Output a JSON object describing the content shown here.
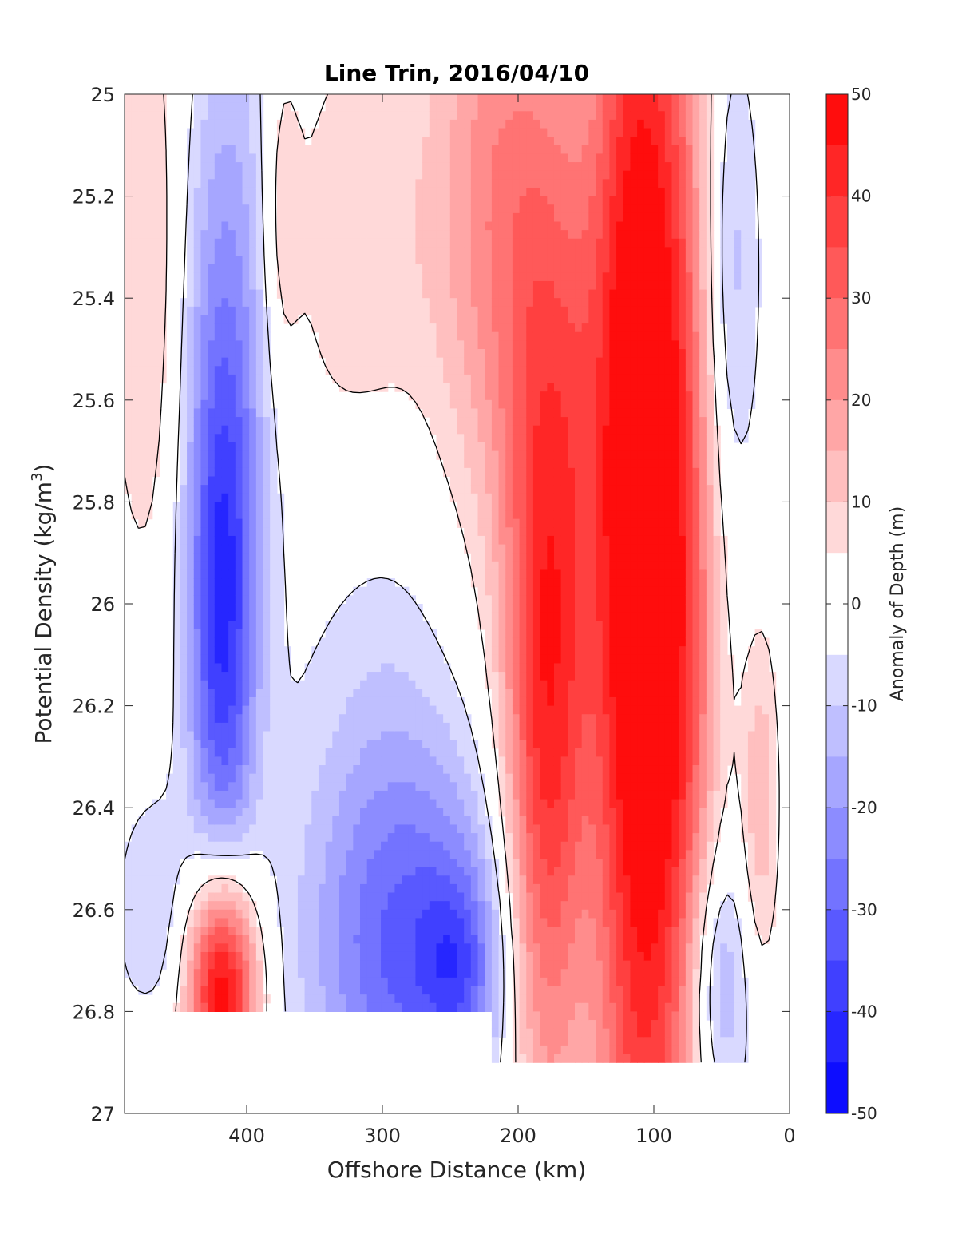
{
  "chart_data": {
    "type": "heatmap",
    "title": "Line Trin, 2016/04/10",
    "xlabel": "Offshore Distance (km)",
    "ylabel_main": "Potential Density (kg/m",
    "ylabel_sup": "3",
    "ylabel_end": ")",
    "colorbar_label": "Anomaly of Depth (m)",
    "x_reversed": true,
    "y_reversed": true,
    "xlim": [
      490,
      0
    ],
    "ylim": [
      25,
      27
    ],
    "xticks": [
      400,
      300,
      200,
      100,
      0
    ],
    "xtick_labels": [
      "400",
      "300",
      "200",
      "100",
      "0"
    ],
    "yticks": [
      25,
      25.2,
      25.4,
      25.6,
      25.8,
      26,
      26.2,
      26.4,
      26.6,
      26.8,
      27
    ],
    "ytick_labels": [
      "25",
      "25.2",
      "25.4",
      "25.6",
      "25.8",
      "26",
      "26.2",
      "26.4",
      "26.6",
      "26.8",
      "27"
    ],
    "colorbar": {
      "min": -50,
      "max": 50,
      "step": 5,
      "ticks": [
        50,
        40,
        30,
        20,
        10,
        0,
        -10,
        -20,
        -30,
        -40,
        -50
      ],
      "tick_labels": [
        "50",
        "40",
        "30",
        "20",
        "10",
        "0",
        "-10",
        "-20",
        "-30",
        "-40",
        "-50"
      ],
      "colormap": "blue-white-red",
      "low_color": "#0000ff",
      "mid_color": "#ffffff",
      "high_color": "#ff0000"
    },
    "contour_levels": [
      0
    ],
    "data_extent": {
      "y_max_by_x": [
        {
          "x_range": [
            490,
            220
          ],
          "y_max": 26.8
        },
        {
          "x_range": [
            220,
            0
          ],
          "y_max": 26.9
        }
      ]
    },
    "features": [
      {
        "x": 470,
        "y": 25.35,
        "amp": 12,
        "sx": 22,
        "sy": 0.45
      },
      {
        "x": 470,
        "y": 26.95,
        "amp": 6,
        "sx": 15,
        "sy": 0.1
      },
      {
        "x": 418,
        "y": 26.05,
        "amp": -36,
        "sx": 18,
        "sy": 0.38
      },
      {
        "x": 415,
        "y": 25.4,
        "amp": -18,
        "sx": 28,
        "sy": 0.45
      },
      {
        "x": 418,
        "y": 26.75,
        "amp": 55,
        "sx": 18,
        "sy": 0.16
      },
      {
        "x": 470,
        "y": 26.6,
        "amp": -10,
        "sx": 20,
        "sy": 0.18
      },
      {
        "x": 375,
        "y": 25.25,
        "amp": 10,
        "sx": 10,
        "sy": 0.25
      },
      {
        "x": 320,
        "y": 25.3,
        "amp": 10,
        "sx": 40,
        "sy": 0.3
      },
      {
        "x": 300,
        "y": 26.3,
        "amp": -8,
        "sx": 45,
        "sy": 0.4
      },
      {
        "x": 275,
        "y": 26.7,
        "amp": -28,
        "sx": 55,
        "sy": 0.28
      },
      {
        "x": 245,
        "y": 26.7,
        "amp": -14,
        "sx": 18,
        "sy": 0.12
      },
      {
        "x": 215,
        "y": 25.2,
        "amp": 22,
        "sx": 35,
        "sy": 0.45
      },
      {
        "x": 180,
        "y": 26.35,
        "amp": 38,
        "sx": 22,
        "sy": 0.55
      },
      {
        "x": 165,
        "y": 25.6,
        "amp": 18,
        "sx": 30,
        "sy": 0.5
      },
      {
        "x": 110,
        "y": 25.9,
        "amp": 55,
        "sx": 24,
        "sy": 1.1
      },
      {
        "x": 75,
        "y": 26.0,
        "amp": 22,
        "sx": 18,
        "sy": 0.9
      },
      {
        "x": 45,
        "y": 25.35,
        "amp": -14,
        "sx": 16,
        "sy": 0.35
      },
      {
        "x": 55,
        "y": 26.75,
        "amp": -20,
        "sx": 18,
        "sy": 0.2
      },
      {
        "x": 22,
        "y": 26.4,
        "amp": 14,
        "sx": 10,
        "sy": 0.25
      }
    ]
  }
}
